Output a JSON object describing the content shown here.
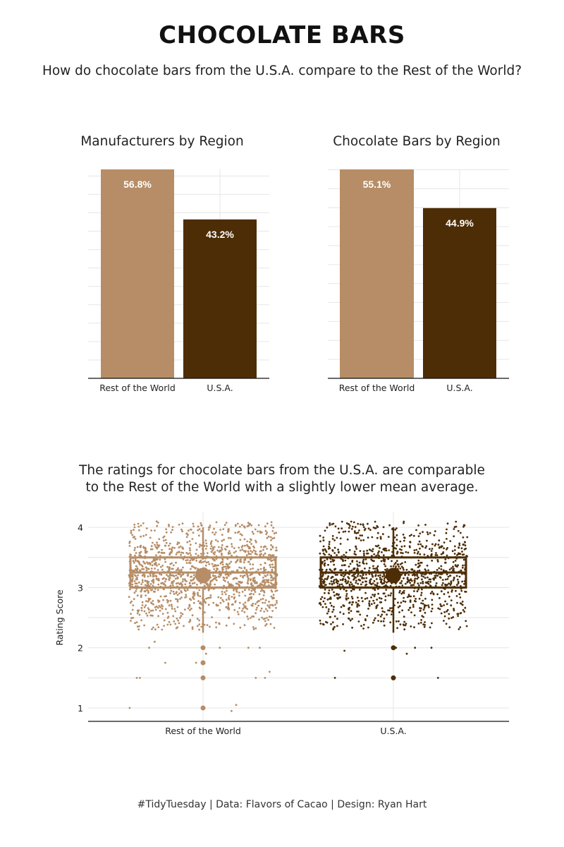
{
  "title": "CHOCOLATE BARS",
  "subtitle": "How do chocolate bars from the U.S.A. compare to the Rest of the World?",
  "caption": "#TidyTuesday | Data: Flavors of Cacao | Design: Ryan Hart",
  "colors": {
    "rest_of_world": "#b68d66",
    "usa": "#4d2d06",
    "grid": "#e6e6e6",
    "axis": "#111111"
  },
  "chart_data": [
    {
      "type": "bar",
      "title": "Manufacturers by Region",
      "categories": [
        "Rest of the World",
        "U.S.A."
      ],
      "values": [
        56.8,
        43.2
      ],
      "value_labels": [
        "56.8%",
        "43.2%"
      ],
      "ylim": [
        0,
        56.8
      ],
      "grid": true
    },
    {
      "type": "bar",
      "title": "Chocolate Bars by Region",
      "categories": [
        "Rest of the World",
        "U.S.A."
      ],
      "values": [
        55.1,
        44.9
      ],
      "value_labels": [
        "55.1%",
        "44.9%"
      ],
      "ylim": [
        0,
        55.1
      ],
      "grid": true
    },
    {
      "type": "scatter",
      "title_lines": [
        "The ratings for chocolate bars from the U.S.A. are comparable",
        "to the Rest of the World with a slightly lower mean average."
      ],
      "categories": [
        "Rest of the World",
        "U.S.A."
      ],
      "ylabel": "Rating Score",
      "yticks": [
        1,
        2,
        3,
        4
      ],
      "ylim": [
        0.75,
        4.1
      ],
      "grid": true,
      "summary": [
        {
          "name": "Rest of the World",
          "mean": 3.2,
          "q1": 3.0,
          "median": 3.25,
          "q3": 3.5,
          "whisker_low": 2.25,
          "whisker_high": 4.0
        },
        {
          "name": "U.S.A.",
          "mean": 3.2,
          "q1": 3.0,
          "median": 3.25,
          "q3": 3.5,
          "whisker_low": 2.25,
          "whisker_high": 4.0
        }
      ],
      "outliers": [
        {
          "name": "Rest of the World",
          "values": [
            2.0,
            1.75,
            1.5,
            1.0
          ]
        },
        {
          "name": "U.S.A.",
          "values": [
            2.0,
            1.5
          ]
        }
      ],
      "low_points": [
        {
          "name": "Rest of the World",
          "values": [
            2.0,
            2.0,
            2.1,
            2.0,
            2.0,
            1.9,
            1.75,
            1.75,
            1.6,
            1.5,
            1.5,
            1.5,
            1.5,
            1.05,
            1.0,
            0.95
          ]
        },
        {
          "name": "U.S.A.",
          "values": [
            2.0,
            2.0,
            1.9,
            1.95,
            2.0,
            1.5,
            1.5
          ]
        }
      ],
      "jitter_counts": {
        "Rest of the World": 1400,
        "U.S.A.": 1130
      }
    }
  ]
}
